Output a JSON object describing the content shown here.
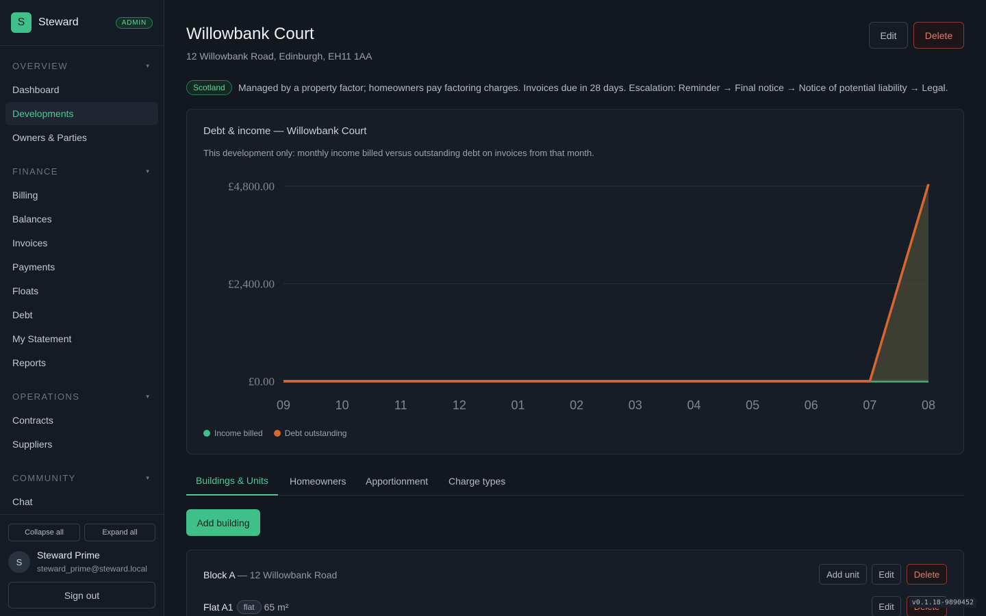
{
  "brand": {
    "logo_letter": "S",
    "name": "Steward",
    "badge": "ADMIN"
  },
  "sidebar": {
    "sections": [
      {
        "title": "OVERVIEW",
        "items": [
          "Dashboard",
          "Developments",
          "Owners & Parties"
        ]
      },
      {
        "title": "FINANCE",
        "items": [
          "Billing",
          "Balances",
          "Invoices",
          "Payments",
          "Floats",
          "Debt",
          "My Statement",
          "Reports"
        ]
      },
      {
        "title": "OPERATIONS",
        "items": [
          "Contracts",
          "Suppliers"
        ]
      },
      {
        "title": "COMMUNITY",
        "items": [
          "Chat"
        ]
      }
    ],
    "active_item": "Developments",
    "collapse_all": "Collapse all",
    "expand_all": "Expand all"
  },
  "user": {
    "initial": "S",
    "name": "Steward Prime",
    "email": "steward_prime@steward.local",
    "sign_out": "Sign out"
  },
  "page": {
    "title": "Willowbank Court",
    "address": "12 Willowbank Road, Edinburgh, EH11 1AA",
    "edit_label": "Edit",
    "delete_label": "Delete",
    "region_badge": "Scotland",
    "region_text": "Managed by a property factor; homeowners pay factoring charges. Invoices due in 28 days. Escalation: Reminder → Final notice → Notice of potential liability → Legal."
  },
  "chart_data": {
    "type": "area",
    "title": "Debt & income — Willowbank Court",
    "subtitle": "This development only: monthly income billed versus outstanding debt on invoices from that month.",
    "categories": [
      "09",
      "10",
      "11",
      "12",
      "01",
      "02",
      "03",
      "04",
      "05",
      "06",
      "07",
      "08"
    ],
    "y_ticks": [
      "£0.00",
      "£2,400.00",
      "£4,800.00"
    ],
    "ylim": [
      0,
      4800
    ],
    "grid": true,
    "legend_position": "bottom-left",
    "series": [
      {
        "name": "Income billed",
        "color": "#3fbf8a",
        "values": [
          0,
          0,
          0,
          0,
          0,
          0,
          0,
          0,
          0,
          0,
          0,
          0
        ]
      },
      {
        "name": "Debt outstanding",
        "color": "#d9662f",
        "values": [
          0,
          0,
          0,
          0,
          0,
          0,
          0,
          0,
          0,
          0,
          0,
          4850
        ]
      }
    ]
  },
  "tabs": [
    "Buildings & Units",
    "Homeowners",
    "Apportionment",
    "Charge types"
  ],
  "active_tab": "Buildings & Units",
  "add_building_label": "Add building",
  "building": {
    "name": "Block A",
    "separator": "—",
    "address": "12 Willowbank Road",
    "add_unit_label": "Add unit",
    "edit_label": "Edit",
    "delete_label": "Delete",
    "units": [
      {
        "name": "Flat A1",
        "type": "flat",
        "area": "65 m²",
        "edit_label": "Edit",
        "delete_label": "Delete"
      }
    ]
  },
  "version": "v0.1.18-9890452"
}
